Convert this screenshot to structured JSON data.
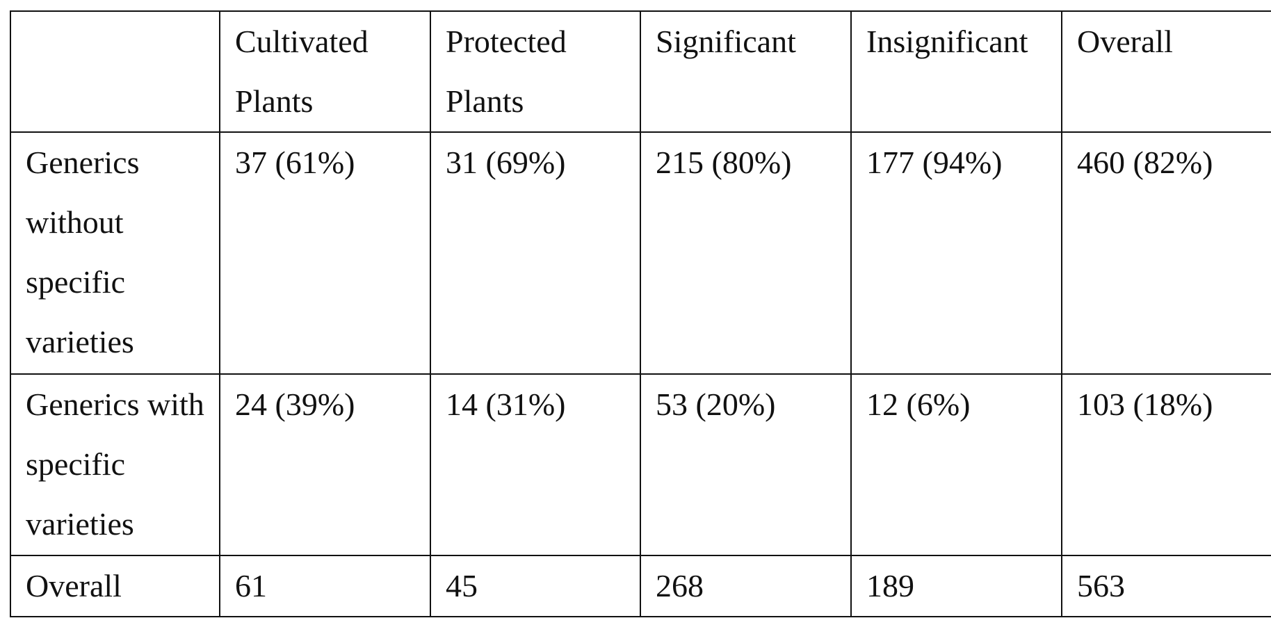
{
  "table": {
    "header": [
      "Cultivated Plants",
      "Protected Plants",
      "Significant",
      "Insignificant",
      "Overall"
    ],
    "rows": [
      [
        "Generics without specific varieties",
        "37 (61%)",
        "31 (69%)",
        "215 (80%)",
        "177 (94%)",
        "460 (82%)"
      ],
      [
        "Generics with specific varieties",
        "24 (39%)",
        "14 (31%)",
        "53 (20%)",
        "12 (6%)",
        "103 (18%)"
      ],
      [
        "Overall",
        "61",
        "45",
        "268",
        "189",
        "563"
      ]
    ]
  }
}
